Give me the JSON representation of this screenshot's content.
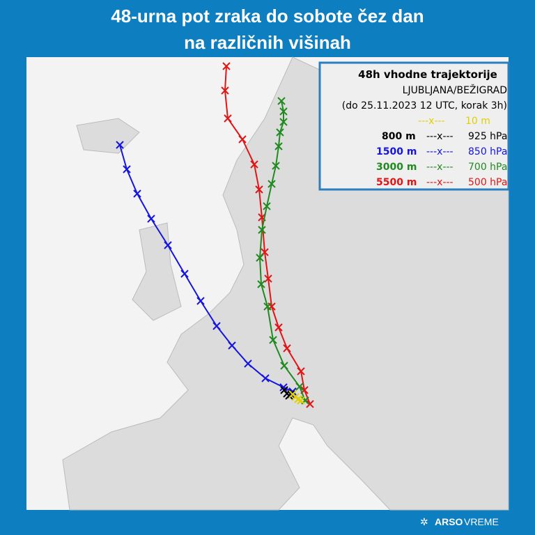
{
  "header": {
    "title_lines": [
      "48-urna pot zraka do sobote čez dan",
      "na različnih višinah"
    ]
  },
  "legend": {
    "title": "48h vhodne trajektorije",
    "station": "LJUBLJANA/BEŽIGRAD",
    "period": "(do 25.11.2023 12 UTC, korak 3h)",
    "rows": [
      {
        "marker": "---x---",
        "level": "10 m"
      },
      {
        "height": "800 m",
        "marker": "---x---",
        "level": "925 hPa"
      },
      {
        "height": "1500 m",
        "marker": "---x---",
        "level": "850 hPa"
      },
      {
        "height": "3000 m",
        "marker": "---x---",
        "level": "700 hPa"
      },
      {
        "height": "5500 m",
        "marker": "---x---",
        "level": "500 hPa"
      }
    ]
  },
  "footer": {
    "brand_bold": "ARSO",
    "brand": "VREME"
  }
}
